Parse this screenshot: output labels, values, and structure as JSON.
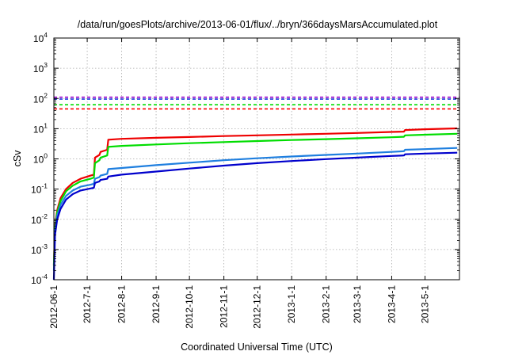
{
  "chart_data": {
    "type": "line",
    "title": "/data/run/goesPlots/archive/2013-06-01/flux/../bryn/366daysMarsAccumulated.plot",
    "xlabel": "Coordinated Universal Time (UTC)",
    "ylabel": "cSv",
    "yscale": "log",
    "ylim": [
      0.0001,
      10000
    ],
    "xlim": [
      "2012-06-01",
      "2013-06-01"
    ],
    "grid": true,
    "x_ticks": [
      "2012-06-1",
      "2012-7-1",
      "2012-8-1",
      "2012-9-1",
      "2012-10-1",
      "2012-11-1",
      "2012-12-1",
      "2013-1-1",
      "2013-2-1",
      "2013-3-1",
      "2013-4-1",
      "2013-5-1"
    ],
    "y_ticks": [
      {
        "value": 0.0001,
        "base": "10",
        "exp": "-4"
      },
      {
        "value": 0.001,
        "base": "10",
        "exp": "-3"
      },
      {
        "value": 0.01,
        "base": "10",
        "exp": "-2"
      },
      {
        "value": 0.1,
        "base": "10",
        "exp": "-1"
      },
      {
        "value": 1,
        "base": "10",
        "exp": "0"
      },
      {
        "value": 10,
        "base": "10",
        "exp": "1"
      },
      {
        "value": 100,
        "base": "10",
        "exp": "2"
      },
      {
        "value": 1000,
        "base": "10",
        "exp": "3"
      },
      {
        "value": 10000,
        "base": "10",
        "exp": "4"
      }
    ],
    "thresholds": [
      {
        "value": 110,
        "color": "#9a00cc"
      },
      {
        "value": 95,
        "color": "#1f3fdf"
      },
      {
        "value": 62,
        "color": "#00dd00"
      },
      {
        "value": 45,
        "color": "#ff0000"
      }
    ],
    "series": [
      {
        "color": "#ee0000",
        "x": [
          "2012-06-01",
          "2012-06-02",
          "2012-06-04",
          "2012-06-07",
          "2012-06-12",
          "2012-06-18",
          "2012-06-25",
          "2012-07-04",
          "2012-07-07",
          "2012-07-08",
          "2012-07-12",
          "2012-07-13",
          "2012-07-19",
          "2012-07-20",
          "2012-08-01",
          "2012-09-01",
          "2012-10-01",
          "2012-11-01",
          "2012-12-01",
          "2013-01-01",
          "2013-02-01",
          "2013-03-01",
          "2013-04-01",
          "2013-04-12",
          "2013-04-13",
          "2013-05-01",
          "2013-05-30"
        ],
        "y": [
          0.0003,
          0.006,
          0.02,
          0.05,
          0.1,
          0.16,
          0.22,
          0.28,
          0.3,
          1.1,
          1.35,
          1.7,
          2.0,
          4.3,
          4.6,
          5.0,
          5.3,
          5.7,
          6.0,
          6.4,
          6.8,
          7.2,
          7.8,
          8.0,
          9.0,
          9.6,
          10.2
        ]
      },
      {
        "color": "#00dd00",
        "x": [
          "2012-06-01",
          "2012-06-02",
          "2012-06-04",
          "2012-06-07",
          "2012-06-12",
          "2012-06-18",
          "2012-06-25",
          "2012-07-04",
          "2012-07-07",
          "2012-07-08",
          "2012-07-12",
          "2012-07-13",
          "2012-07-19",
          "2012-07-20",
          "2012-08-01",
          "2012-09-01",
          "2012-10-01",
          "2012-11-01",
          "2012-12-01",
          "2013-01-01",
          "2013-02-01",
          "2013-03-01",
          "2013-04-01",
          "2013-04-12",
          "2013-04-13",
          "2013-05-01",
          "2013-05-30"
        ],
        "y": [
          0.0003,
          0.005,
          0.017,
          0.04,
          0.085,
          0.13,
          0.18,
          0.22,
          0.24,
          0.72,
          0.9,
          1.1,
          1.3,
          2.5,
          2.7,
          3.0,
          3.3,
          3.6,
          3.9,
          4.2,
          4.5,
          4.8,
          5.2,
          5.4,
          6.0,
          6.3,
          6.8
        ]
      },
      {
        "color": "#1f7fdf",
        "x": [
          "2012-06-01",
          "2012-06-02",
          "2012-06-04",
          "2012-06-07",
          "2012-06-12",
          "2012-06-18",
          "2012-06-25",
          "2012-07-04",
          "2012-07-07",
          "2012-07-08",
          "2012-07-12",
          "2012-07-13",
          "2012-07-19",
          "2012-07-20",
          "2012-08-01",
          "2012-09-01",
          "2012-10-01",
          "2012-11-01",
          "2012-12-01",
          "2013-01-01",
          "2013-02-01",
          "2013-03-01",
          "2013-04-01",
          "2013-04-12",
          "2013-04-13",
          "2013-05-01",
          "2013-05-30"
        ],
        "y": [
          0.0002,
          0.004,
          0.013,
          0.03,
          0.06,
          0.09,
          0.12,
          0.14,
          0.15,
          0.22,
          0.25,
          0.28,
          0.32,
          0.46,
          0.5,
          0.62,
          0.75,
          0.9,
          1.05,
          1.2,
          1.35,
          1.5,
          1.7,
          1.8,
          2.0,
          2.1,
          2.3
        ]
      },
      {
        "color": "#0000cc",
        "x": [
          "2012-06-01",
          "2012-06-02",
          "2012-06-04",
          "2012-06-07",
          "2012-06-12",
          "2012-06-18",
          "2012-06-25",
          "2012-07-04",
          "2012-07-07",
          "2012-07-08",
          "2012-07-12",
          "2012-07-13",
          "2012-07-19",
          "2012-07-20",
          "2012-08-01",
          "2012-09-01",
          "2012-10-01",
          "2012-11-01",
          "2012-12-01",
          "2013-01-01",
          "2013-02-01",
          "2013-03-01",
          "2013-04-01",
          "2013-04-12",
          "2013-04-13",
          "2013-05-01",
          "2013-05-30"
        ],
        "y": [
          0.0001,
          0.003,
          0.01,
          0.022,
          0.045,
          0.068,
          0.09,
          0.105,
          0.11,
          0.16,
          0.18,
          0.2,
          0.22,
          0.26,
          0.3,
          0.38,
          0.48,
          0.6,
          0.72,
          0.85,
          0.98,
          1.1,
          1.25,
          1.3,
          1.42,
          1.5,
          1.6
        ]
      }
    ]
  }
}
